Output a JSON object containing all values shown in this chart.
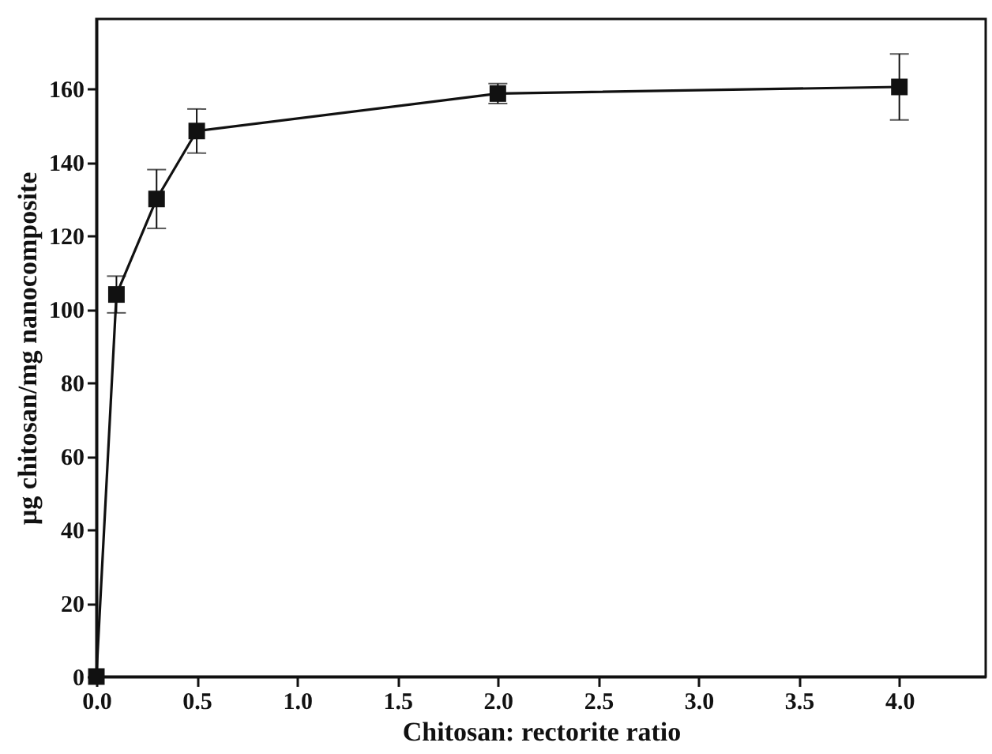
{
  "chart_data": {
    "type": "line",
    "xlabel": "Chitosan: rectorite ratio",
    "ylabel": "µg chitosan/mg nanocomposite",
    "x": [
      0,
      0.1,
      0.3,
      0.5,
      2.0,
      4.0
    ],
    "series": [
      {
        "color": "#111111",
        "values": [
          0,
          104,
          130,
          148.5,
          158.7,
          160.5
        ],
        "errors": [
          null,
          5,
          8,
          6,
          2.7,
          9
        ]
      }
    ],
    "xlim": [
      0,
      4.43
    ],
    "ylim": [
      0,
      179
    ],
    "xticks": [
      {
        "value": 0,
        "label": "0.0"
      },
      0.5,
      {
        "value": 1,
        "label": "1.0"
      },
      1.5,
      {
        "value": 2,
        "label": "2.0"
      },
      2.5,
      {
        "value": 3,
        "label": "3.0"
      },
      3.5,
      {
        "value": 4,
        "label": "4.0"
      }
    ],
    "yticks": [
      0,
      20,
      40,
      60,
      80,
      100,
      120,
      140,
      160
    ],
    "marker": "square",
    "line_style": "solid",
    "grid": false
  }
}
